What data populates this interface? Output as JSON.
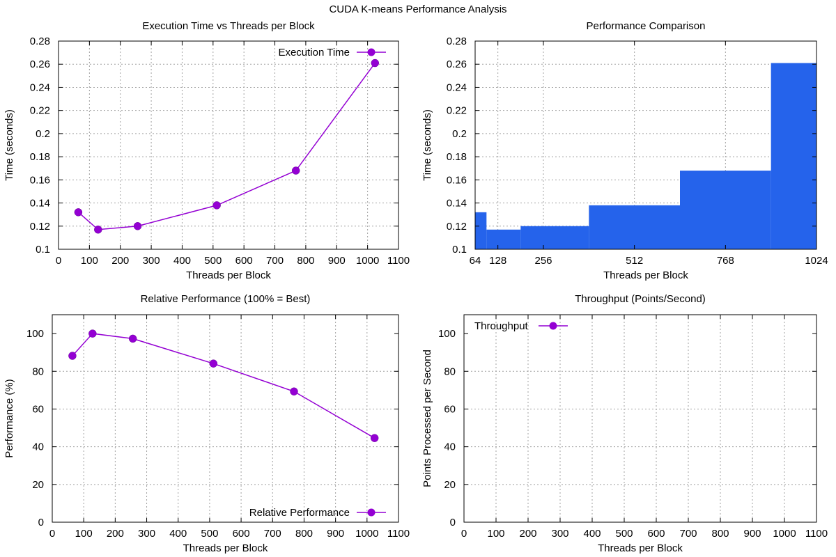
{
  "figure": {
    "title": "CUDA K-means Performance Analysis"
  },
  "colors": {
    "series": "#9400d3",
    "bars": "#2563eb"
  },
  "chart_data": [
    {
      "type": "line",
      "title": "Execution Time vs Threads per Block",
      "xlabel": "Threads per Block",
      "ylabel": "Time (seconds)",
      "xlim": [
        0,
        1100
      ],
      "ylim": [
        0.1,
        0.28
      ],
      "xticks": [
        0,
        100,
        200,
        300,
        400,
        500,
        600,
        700,
        800,
        900,
        1000,
        1100
      ],
      "yticks": [
        0.1,
        0.12,
        0.14,
        0.16,
        0.18,
        0.2,
        0.22,
        0.24,
        0.26,
        0.28
      ],
      "ytick_labels": [
        "0.1",
        "0.12",
        "0.14",
        "0.16",
        "0.18",
        "0.2",
        "0.22",
        "0.24",
        "0.26",
        "0.28"
      ],
      "grid": true,
      "legend": "top-right",
      "series": [
        {
          "name": "Execution Time",
          "x": [
            64,
            128,
            256,
            512,
            768,
            1024
          ],
          "y": [
            0.132,
            0.117,
            0.12,
            0.138,
            0.168,
            0.261
          ]
        }
      ]
    },
    {
      "type": "bar",
      "title": "Performance Comparison",
      "xlabel": "Threads per Block",
      "ylabel": "Time (seconds)",
      "categories": [
        "64",
        "128",
        "256",
        "512",
        "768",
        "1024"
      ],
      "x": [
        64,
        128,
        256,
        512,
        768,
        1024
      ],
      "values": [
        0.132,
        0.117,
        0.12,
        0.138,
        0.168,
        0.261
      ],
      "ylim": [
        0.1,
        0.28
      ],
      "yticks": [
        0.1,
        0.12,
        0.14,
        0.16,
        0.18,
        0.2,
        0.22,
        0.24,
        0.26,
        0.28
      ],
      "ytick_labels": [
        "0.1",
        "0.12",
        "0.14",
        "0.16",
        "0.18",
        "0.2",
        "0.22",
        "0.24",
        "0.26",
        "0.28"
      ],
      "grid": true
    },
    {
      "type": "line",
      "title": "Relative Performance (100% = Best)",
      "xlabel": "Threads per Block",
      "ylabel": "Performance (%)",
      "xlim": [
        0,
        1100
      ],
      "ylim": [
        0,
        110
      ],
      "xticks": [
        0,
        100,
        200,
        300,
        400,
        500,
        600,
        700,
        800,
        900,
        1000,
        1100
      ],
      "yticks": [
        0,
        20,
        40,
        60,
        80,
        100
      ],
      "ytick_labels": [
        "0",
        "20",
        "40",
        "60",
        "80",
        "100"
      ],
      "grid": true,
      "legend": "bottom-right",
      "series": [
        {
          "name": "Relative Performance",
          "x": [
            64,
            128,
            256,
            512,
            768,
            1024
          ],
          "y": [
            88.2,
            100,
            97.3,
            84.1,
            69.3,
            44.6
          ]
        }
      ]
    },
    {
      "type": "line",
      "title": "Throughput (Points/Second)",
      "xlabel": "Threads per Block",
      "ylabel": "Points Processed per Second",
      "xlim": [
        0,
        1100
      ],
      "ylim": [
        0,
        110
      ],
      "xticks": [
        0,
        100,
        200,
        300,
        400,
        500,
        600,
        700,
        800,
        900,
        1000,
        1100
      ],
      "yticks": [
        0,
        20,
        40,
        60,
        80,
        100
      ],
      "ytick_labels": [
        "0",
        "20",
        "40",
        "60",
        "80",
        "100"
      ],
      "grid": true,
      "legend": "top-left",
      "series": [
        {
          "name": "Throughput",
          "x": [],
          "y": []
        }
      ]
    }
  ]
}
